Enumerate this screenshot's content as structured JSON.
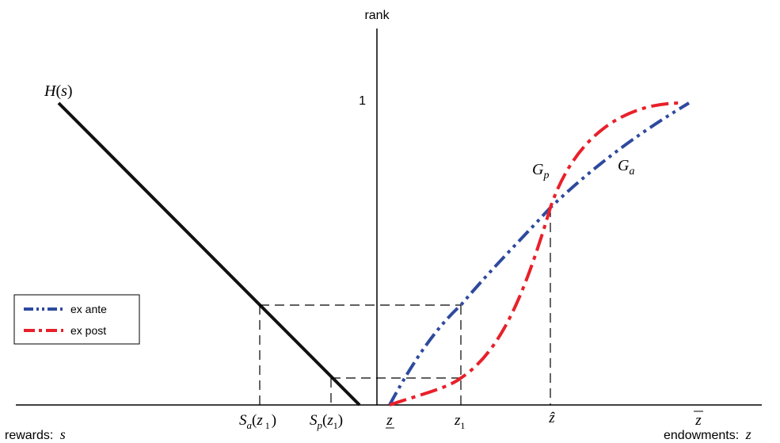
{
  "axis": {
    "y_label": "rank",
    "y_tick_one": "1",
    "x_label_left": "rewards: ",
    "x_label_left_var": "s",
    "x_label_right": "endowments: ",
    "x_label_right_var": "z"
  },
  "curves": {
    "H": {
      "name": "H",
      "arg": "s"
    },
    "Gp": {
      "base": "G",
      "sub": "p",
      "color": "#e8202a"
    },
    "Ga": {
      "base": "G",
      "sub": "a",
      "color": "#2e4a9e"
    }
  },
  "ticks_left": {
    "Sa": {
      "base": "S",
      "sub": "a",
      "arg_var": "z",
      "arg_sub": "1"
    },
    "Sp": {
      "base": "S",
      "sub": "p",
      "arg_var": "z",
      "arg_sub": "1"
    }
  },
  "ticks_right": {
    "z_low": "z",
    "z1": {
      "var": "z",
      "sub": "1"
    },
    "zhat": "ẑ",
    "z_bar": "z"
  },
  "legend": {
    "items": [
      {
        "label": "ex ante",
        "color": "#2e4a9e"
      },
      {
        "label": "ex post",
        "color": "#e8202a"
      }
    ]
  }
}
